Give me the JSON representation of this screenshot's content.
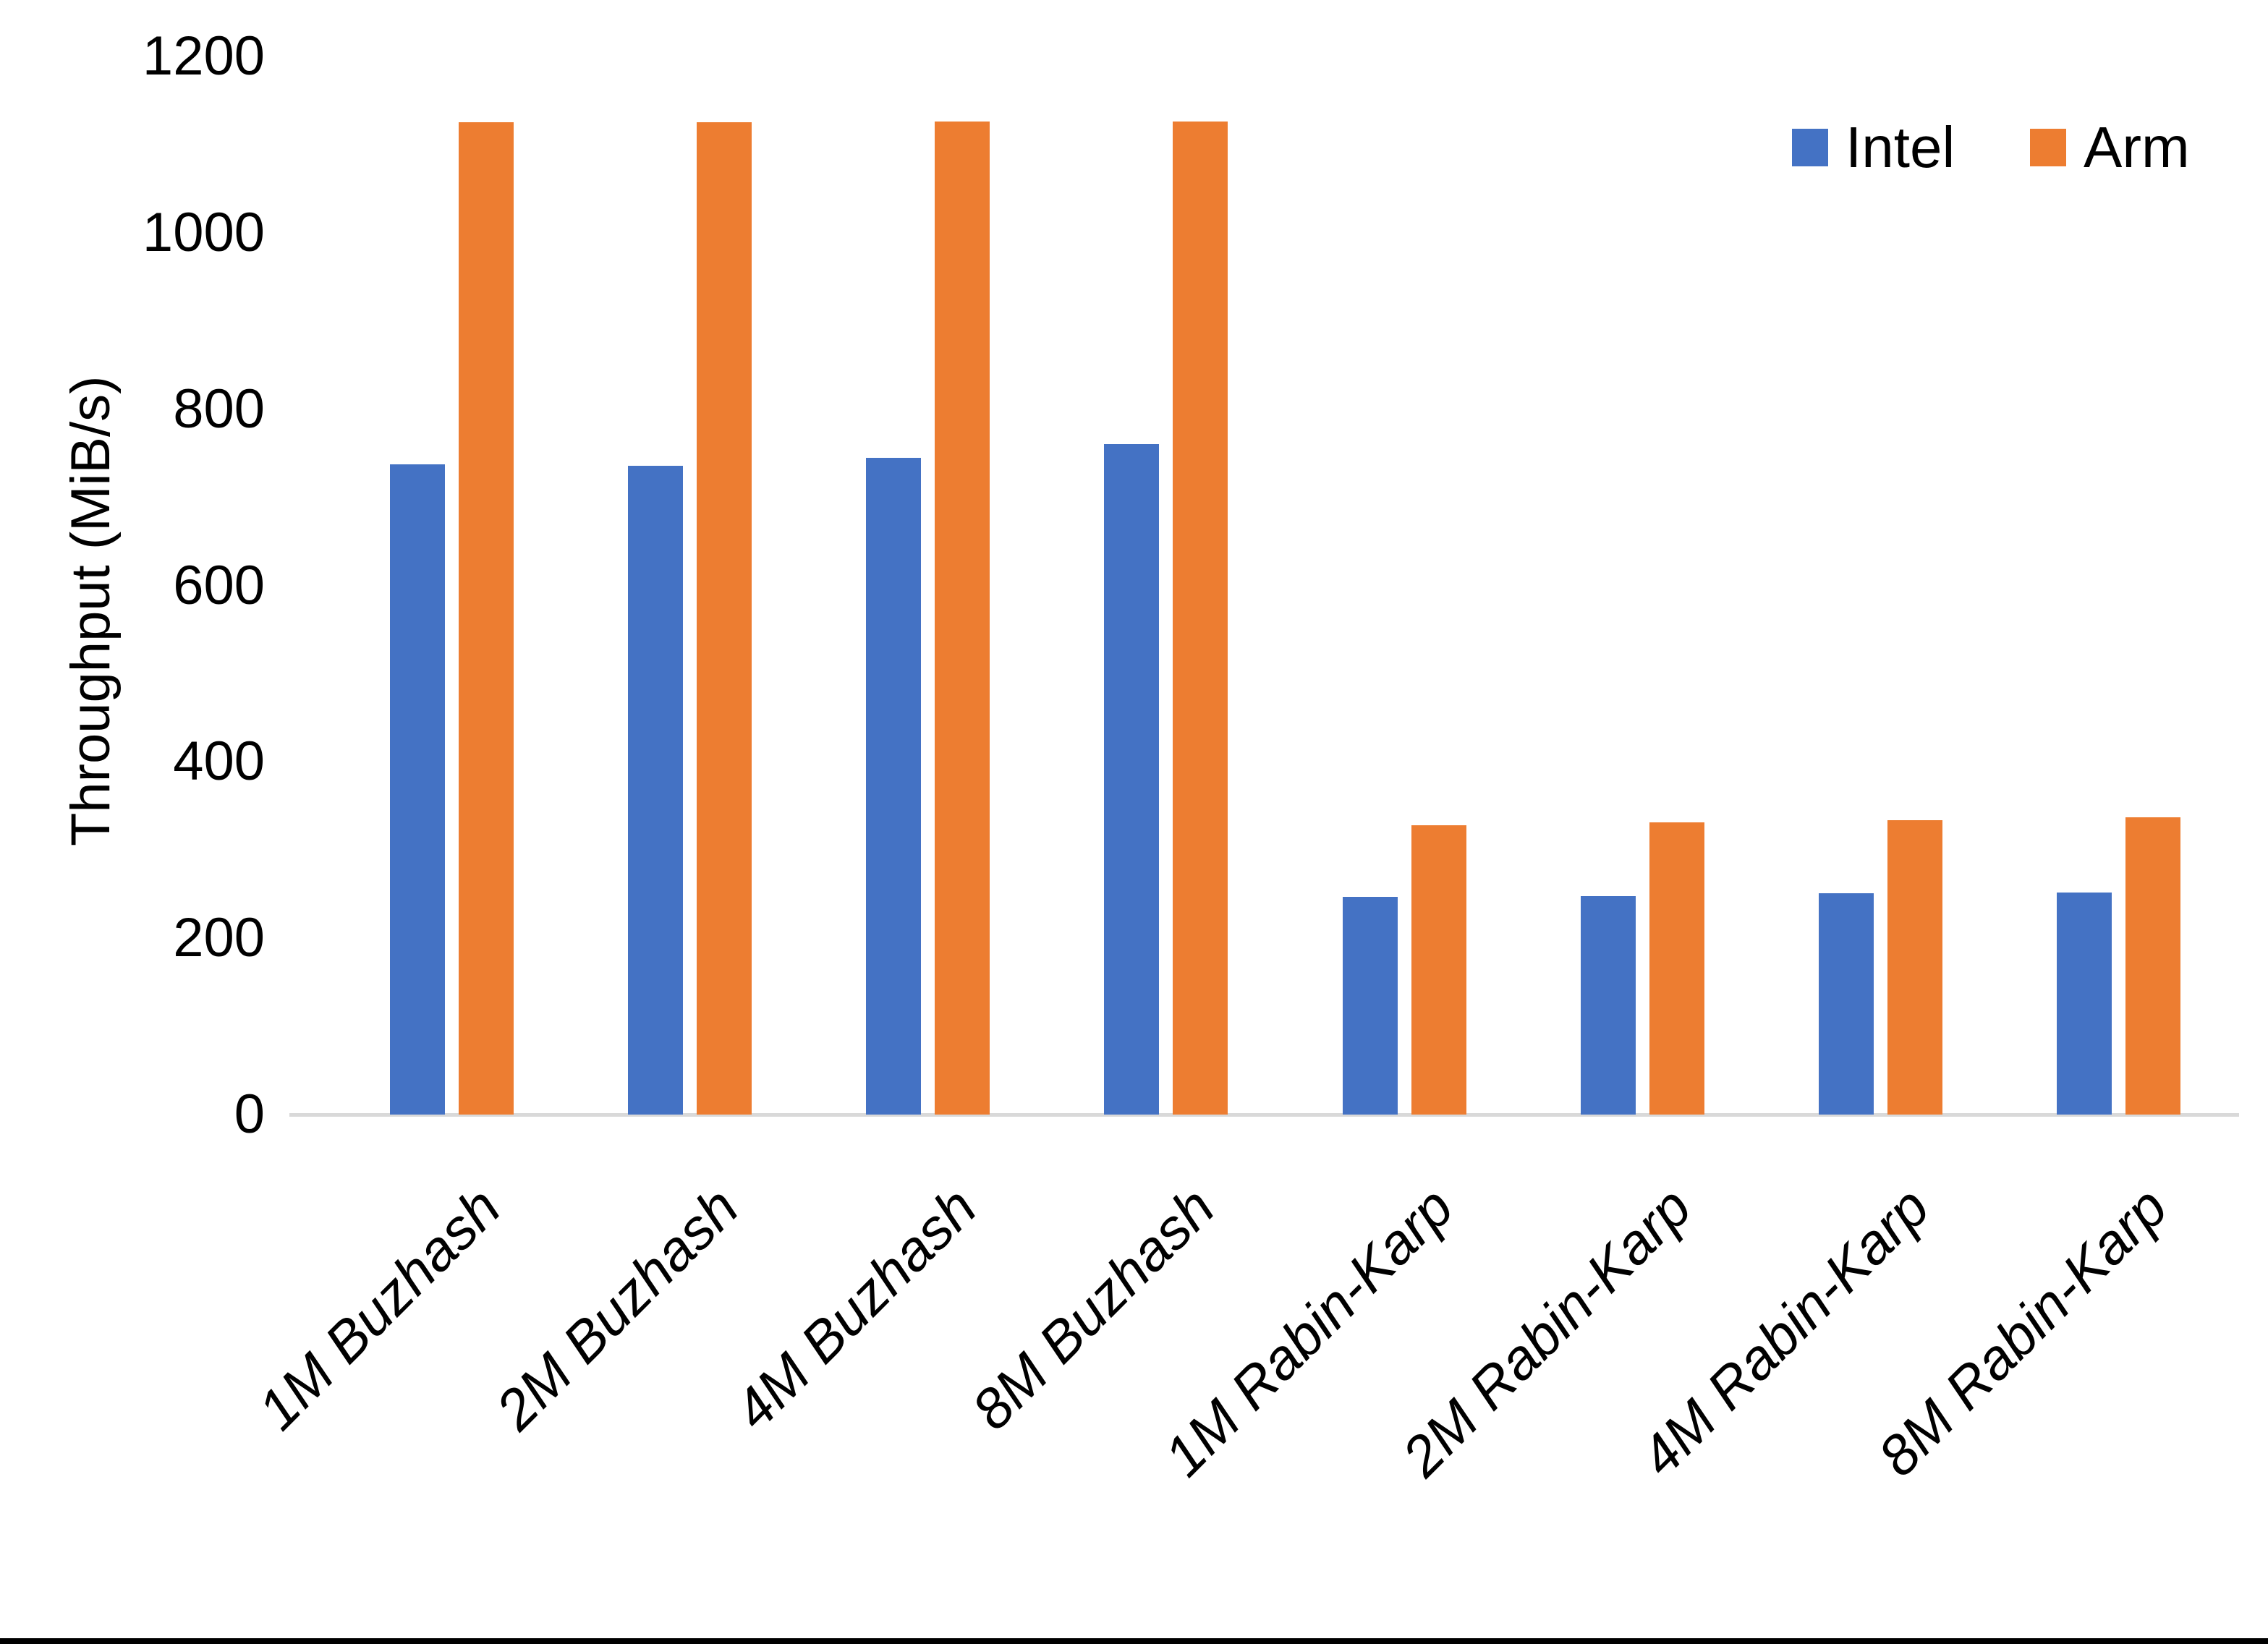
{
  "chart_data": {
    "type": "bar",
    "title": "",
    "xlabel": "",
    "ylabel": "Throughput (MiB/s)",
    "ylim": [
      0,
      1200
    ],
    "ytick_step": 200,
    "ytick_labels": [
      "0",
      "200",
      "400",
      "600",
      "800",
      "1000",
      "1200"
    ],
    "grid": false,
    "legend_position": "top-right",
    "categories": [
      "1M Buzhash",
      "2M Buzhash",
      "4M Buzhash",
      "8M Buzhash",
      "1M Rabin-Karp",
      "2M Rabin-Karp",
      "4M Rabin-Karp",
      "8M Rabin-Karp"
    ],
    "series": [
      {
        "name": "Intel",
        "color": "#4472C4",
        "values": [
          737,
          736,
          745,
          760,
          247,
          248,
          251,
          252
        ]
      },
      {
        "name": "Arm",
        "color": "#ED7D31",
        "values": [
          1125,
          1125,
          1126,
          1126,
          328,
          331,
          334,
          337
        ]
      }
    ],
    "colors": {
      "intel": "#4472C4",
      "arm": "#ED7D31",
      "axis_line": "#D9D9D9",
      "text": "#000000",
      "background": "#FFFFFF",
      "bottom_border": "#000000"
    }
  }
}
